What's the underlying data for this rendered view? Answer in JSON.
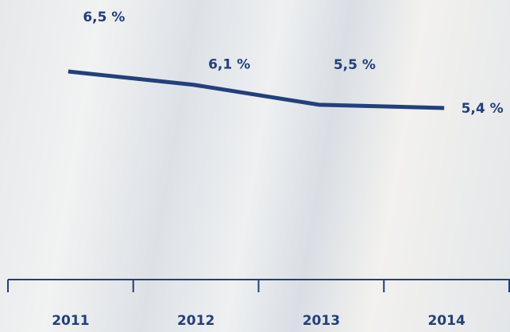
{
  "chart_data": {
    "type": "line",
    "categories": [
      "2011",
      "2012",
      "2013",
      "2014"
    ],
    "series": [
      {
        "color": "#233f7c",
        "values": [
          6.5,
          6.1,
          5.5,
          5.4
        ],
        "value_labels": [
          "6,5 %",
          "6,1 %",
          "5,5 %",
          "5,4 %"
        ]
      }
    ]
  }
}
